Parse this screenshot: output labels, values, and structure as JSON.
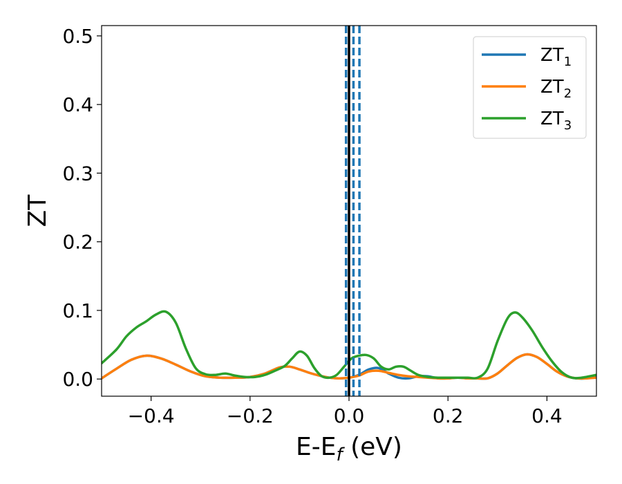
{
  "chart_data": {
    "type": "line",
    "xlabel": {
      "base": "E-E",
      "sub": "f",
      "suffix": " (eV)"
    },
    "ylabel": "ZT",
    "xlim": [
      -0.5,
      0.5
    ],
    "ylim": [
      -0.025,
      0.515
    ],
    "x_ticks": [
      -0.4,
      -0.2,
      0.0,
      0.2,
      0.4
    ],
    "x_tick_labels": [
      "−0.4",
      "−0.2",
      "0.0",
      "0.2",
      "0.4"
    ],
    "y_ticks": [
      0.0,
      0.1,
      0.2,
      0.3,
      0.4,
      0.5
    ],
    "y_tick_labels": [
      "0.0",
      "0.1",
      "0.2",
      "0.3",
      "0.4",
      "0.5"
    ],
    "grid": false,
    "legend_position": "top-right",
    "vlines": [
      {
        "x": 0.0,
        "style": "solid",
        "color": "#000000"
      },
      {
        "x": -0.006,
        "style": "dashed",
        "color": "#1f77b4"
      },
      {
        "x": 0.009,
        "style": "dashed",
        "color": "#1f77b4"
      },
      {
        "x": 0.021,
        "style": "dashed",
        "color": "#1f77b4"
      }
    ],
    "series": [
      {
        "name": {
          "base": "ZT",
          "sub": "1"
        },
        "color": "#1f77b4",
        "x": [
          -0.5,
          -0.47,
          -0.44,
          -0.41,
          -0.38,
          -0.35,
          -0.32,
          -0.29,
          -0.26,
          -0.23,
          -0.2,
          -0.17,
          -0.14,
          -0.12,
          -0.1,
          -0.08,
          -0.06,
          -0.04,
          -0.02,
          0.0,
          0.02,
          0.04,
          0.06,
          0.08,
          0.1,
          0.12,
          0.14,
          0.16,
          0.18,
          0.2,
          0.22,
          0.24,
          0.26,
          0.28,
          0.3,
          0.32,
          0.34,
          0.36,
          0.38,
          0.4,
          0.42,
          0.44,
          0.46,
          0.48,
          0.5
        ],
        "y": [
          0.001,
          0.015,
          0.028,
          0.034,
          0.03,
          0.021,
          0.011,
          0.004,
          0.002,
          0.002,
          0.003,
          0.008,
          0.017,
          0.018,
          0.014,
          0.009,
          0.005,
          0.002,
          0.001,
          0.002,
          0.006,
          0.014,
          0.016,
          0.008,
          0.002,
          0.001,
          0.004,
          0.004,
          0.001,
          0.001,
          0.002,
          0.001,
          0.001,
          0.001,
          0.008,
          0.02,
          0.031,
          0.036,
          0.032,
          0.022,
          0.011,
          0.004,
          0.001,
          0.001,
          0.004
        ]
      },
      {
        "name": {
          "base": "ZT",
          "sub": "2"
        },
        "color": "#ff7f0e",
        "x": [
          -0.5,
          -0.47,
          -0.44,
          -0.41,
          -0.38,
          -0.35,
          -0.32,
          -0.29,
          -0.26,
          -0.23,
          -0.2,
          -0.17,
          -0.14,
          -0.12,
          -0.1,
          -0.08,
          -0.06,
          -0.04,
          -0.02,
          0.0,
          0.02,
          0.04,
          0.06,
          0.08,
          0.1,
          0.12,
          0.14,
          0.16,
          0.18,
          0.2,
          0.22,
          0.24,
          0.26,
          0.28,
          0.3,
          0.32,
          0.34,
          0.36,
          0.38,
          0.4,
          0.42,
          0.44,
          0.46,
          0.48,
          0.5
        ],
        "y": [
          0.001,
          0.015,
          0.028,
          0.034,
          0.03,
          0.021,
          0.011,
          0.004,
          0.002,
          0.002,
          0.003,
          0.008,
          0.017,
          0.018,
          0.014,
          0.009,
          0.005,
          0.002,
          0.001,
          0.002,
          0.005,
          0.011,
          0.012,
          0.009,
          0.006,
          0.004,
          0.003,
          0.002,
          0.001,
          0.001,
          0.002,
          0.001,
          0.001,
          0.001,
          0.008,
          0.02,
          0.031,
          0.036,
          0.032,
          0.022,
          0.011,
          0.004,
          0.001,
          0.001,
          0.002
        ]
      },
      {
        "name": {
          "base": "ZT",
          "sub": "3"
        },
        "color": "#2ca02c",
        "x": [
          -0.5,
          -0.47,
          -0.45,
          -0.43,
          -0.41,
          -0.39,
          -0.37,
          -0.35,
          -0.33,
          -0.31,
          -0.29,
          -0.27,
          -0.25,
          -0.23,
          -0.21,
          -0.19,
          -0.17,
          -0.15,
          -0.13,
          -0.115,
          -0.1,
          -0.085,
          -0.07,
          -0.055,
          -0.04,
          -0.025,
          -0.01,
          0.005,
          0.02,
          0.035,
          0.05,
          0.065,
          0.08,
          0.095,
          0.11,
          0.125,
          0.14,
          0.16,
          0.18,
          0.2,
          0.22,
          0.24,
          0.26,
          0.28,
          0.3,
          0.32,
          0.335,
          0.35,
          0.37,
          0.39,
          0.41,
          0.43,
          0.45,
          0.47,
          0.5
        ],
        "y": [
          0.023,
          0.043,
          0.062,
          0.075,
          0.084,
          0.094,
          0.098,
          0.082,
          0.045,
          0.016,
          0.007,
          0.006,
          0.008,
          0.005,
          0.003,
          0.003,
          0.006,
          0.012,
          0.019,
          0.03,
          0.04,
          0.034,
          0.016,
          0.004,
          0.002,
          0.006,
          0.018,
          0.03,
          0.034,
          0.035,
          0.03,
          0.018,
          0.014,
          0.018,
          0.018,
          0.012,
          0.006,
          0.003,
          0.002,
          0.002,
          0.002,
          0.002,
          0.002,
          0.015,
          0.055,
          0.088,
          0.097,
          0.09,
          0.071,
          0.047,
          0.026,
          0.01,
          0.002,
          0.002,
          0.006
        ]
      }
    ]
  }
}
